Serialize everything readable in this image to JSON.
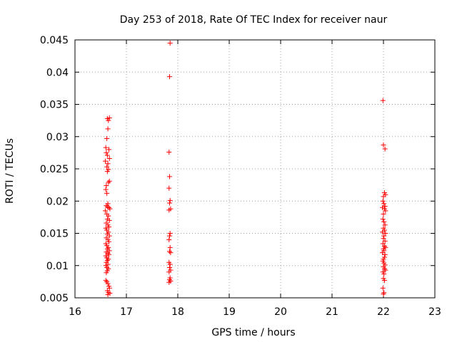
{
  "chart_data": {
    "type": "scatter",
    "title": "Day 253 of 2018, Rate Of TEC Index for receiver naur",
    "xlabel": "GPS time / hours",
    "ylabel": "ROTI / TECUs",
    "xlim": [
      16,
      23
    ],
    "ylim": [
      0.005,
      0.045
    ],
    "grid": true,
    "marker": "+",
    "marker_color": "#ff0000",
    "x_ticks": [
      16,
      17,
      18,
      19,
      20,
      21,
      22,
      23
    ],
    "x_tick_labels": [
      "16",
      "17",
      "18",
      "19",
      "20",
      "21",
      "22",
      "23"
    ],
    "y_ticks": [
      0.005,
      0.01,
      0.015,
      0.02,
      0.025,
      0.03,
      0.035,
      0.04,
      0.045
    ],
    "y_tick_labels": [
      "0.005",
      "0.01",
      "0.015",
      "0.02",
      "0.025",
      "0.03",
      "0.035",
      "0.04",
      "0.045"
    ],
    "series": [
      {
        "name": "ROTI",
        "points": [
          [
            16.63,
            0.0328
          ],
          [
            16.65,
            0.0325
          ],
          [
            16.67,
            0.0329
          ],
          [
            16.64,
            0.0312
          ],
          [
            16.62,
            0.0297
          ],
          [
            16.6,
            0.0283
          ],
          [
            16.66,
            0.028
          ],
          [
            16.61,
            0.0275
          ],
          [
            16.63,
            0.0271
          ],
          [
            16.67,
            0.0266
          ],
          [
            16.59,
            0.0262
          ],
          [
            16.64,
            0.0258
          ],
          [
            16.62,
            0.0253
          ],
          [
            16.65,
            0.0249
          ],
          [
            16.63,
            0.0246
          ],
          [
            16.67,
            0.0231
          ],
          [
            16.65,
            0.0229
          ],
          [
            16.61,
            0.0224
          ],
          [
            16.6,
            0.0218
          ],
          [
            16.62,
            0.0212
          ],
          [
            16.64,
            0.0196
          ],
          [
            16.61,
            0.0193
          ],
          [
            16.63,
            0.0191
          ],
          [
            16.66,
            0.019
          ],
          [
            16.68,
            0.0188
          ],
          [
            16.59,
            0.0185
          ],
          [
            16.62,
            0.018
          ],
          [
            16.65,
            0.0177
          ],
          [
            16.63,
            0.0172
          ],
          [
            16.67,
            0.017
          ],
          [
            16.61,
            0.0166
          ],
          [
            16.64,
            0.0163
          ],
          [
            16.66,
            0.016
          ],
          [
            16.6,
            0.0158
          ],
          [
            16.62,
            0.0155
          ],
          [
            16.65,
            0.0152
          ],
          [
            16.63,
            0.0149
          ],
          [
            16.67,
            0.0146
          ],
          [
            16.61,
            0.0143
          ],
          [
            16.64,
            0.014
          ],
          [
            16.66,
            0.0137
          ],
          [
            16.6,
            0.0134
          ],
          [
            16.62,
            0.0131
          ],
          [
            16.65,
            0.0128
          ],
          [
            16.63,
            0.0126
          ],
          [
            16.67,
            0.0123
          ],
          [
            16.61,
            0.0121
          ],
          [
            16.64,
            0.0119
          ],
          [
            16.66,
            0.0117
          ],
          [
            16.6,
            0.0115
          ],
          [
            16.62,
            0.0112
          ],
          [
            16.65,
            0.011
          ],
          [
            16.63,
            0.0108
          ],
          [
            16.61,
            0.0105
          ],
          [
            16.64,
            0.0102
          ],
          [
            16.6,
            0.01
          ],
          [
            16.62,
            0.0097
          ],
          [
            16.65,
            0.0095
          ],
          [
            16.63,
            0.0092
          ],
          [
            16.61,
            0.0089
          ],
          [
            16.6,
            0.0077
          ],
          [
            16.62,
            0.0075
          ],
          [
            16.64,
            0.0072
          ],
          [
            16.66,
            0.0068
          ],
          [
            16.67,
            0.0065
          ],
          [
            16.63,
            0.0061
          ],
          [
            16.65,
            0.0058
          ],
          [
            16.68,
            0.0057
          ],
          [
            16.64,
            0.0055
          ],
          [
            17.85,
            0.0445
          ],
          [
            17.84,
            0.0393
          ],
          [
            17.83,
            0.0276
          ],
          [
            17.84,
            0.0238
          ],
          [
            17.83,
            0.022
          ],
          [
            17.85,
            0.0201
          ],
          [
            17.84,
            0.0197
          ],
          [
            17.86,
            0.0188
          ],
          [
            17.83,
            0.0186
          ],
          [
            17.85,
            0.015
          ],
          [
            17.84,
            0.0146
          ],
          [
            17.83,
            0.014
          ],
          [
            17.85,
            0.0128
          ],
          [
            17.84,
            0.0122
          ],
          [
            17.86,
            0.012
          ],
          [
            17.83,
            0.0105
          ],
          [
            17.85,
            0.0102
          ],
          [
            17.84,
            0.0097
          ],
          [
            17.86,
            0.0093
          ],
          [
            17.83,
            0.009
          ],
          [
            17.85,
            0.0081
          ],
          [
            17.84,
            0.0078
          ],
          [
            17.86,
            0.0076
          ],
          [
            17.83,
            0.0074
          ],
          [
            21.99,
            0.0356
          ],
          [
            22.0,
            0.0287
          ],
          [
            22.03,
            0.0281
          ],
          [
            22.02,
            0.0213
          ],
          [
            22.04,
            0.021
          ],
          [
            22.0,
            0.0207
          ],
          [
            21.99,
            0.02
          ],
          [
            22.01,
            0.0196
          ],
          [
            22.03,
            0.0192
          ],
          [
            21.98,
            0.019
          ],
          [
            22.02,
            0.0188
          ],
          [
            22.04,
            0.0185
          ],
          [
            22.0,
            0.018
          ],
          [
            21.99,
            0.0172
          ],
          [
            22.01,
            0.0168
          ],
          [
            22.03,
            0.0163
          ],
          [
            22.0,
            0.0158
          ],
          [
            22.02,
            0.0155
          ],
          [
            21.98,
            0.0152
          ],
          [
            22.04,
            0.015
          ],
          [
            22.01,
            0.0146
          ],
          [
            22.0,
            0.0142
          ],
          [
            22.03,
            0.0138
          ],
          [
            21.99,
            0.0134
          ],
          [
            22.02,
            0.013
          ],
          [
            22.04,
            0.0128
          ],
          [
            22.0,
            0.0126
          ],
          [
            22.01,
            0.0123
          ],
          [
            21.98,
            0.012
          ],
          [
            22.03,
            0.0117
          ],
          [
            22.02,
            0.0113
          ],
          [
            22.0,
            0.011
          ],
          [
            21.99,
            0.0107
          ],
          [
            22.01,
            0.0104
          ],
          [
            22.03,
            0.0101
          ],
          [
            22.0,
            0.0098
          ],
          [
            22.02,
            0.0095
          ],
          [
            22.04,
            0.0093
          ],
          [
            21.99,
            0.009
          ],
          [
            22.01,
            0.0087
          ],
          [
            22.0,
            0.008
          ],
          [
            22.02,
            0.0077
          ],
          [
            21.99,
            0.0065
          ],
          [
            22.01,
            0.0058
          ],
          [
            22.0,
            0.0056
          ]
        ]
      }
    ]
  }
}
